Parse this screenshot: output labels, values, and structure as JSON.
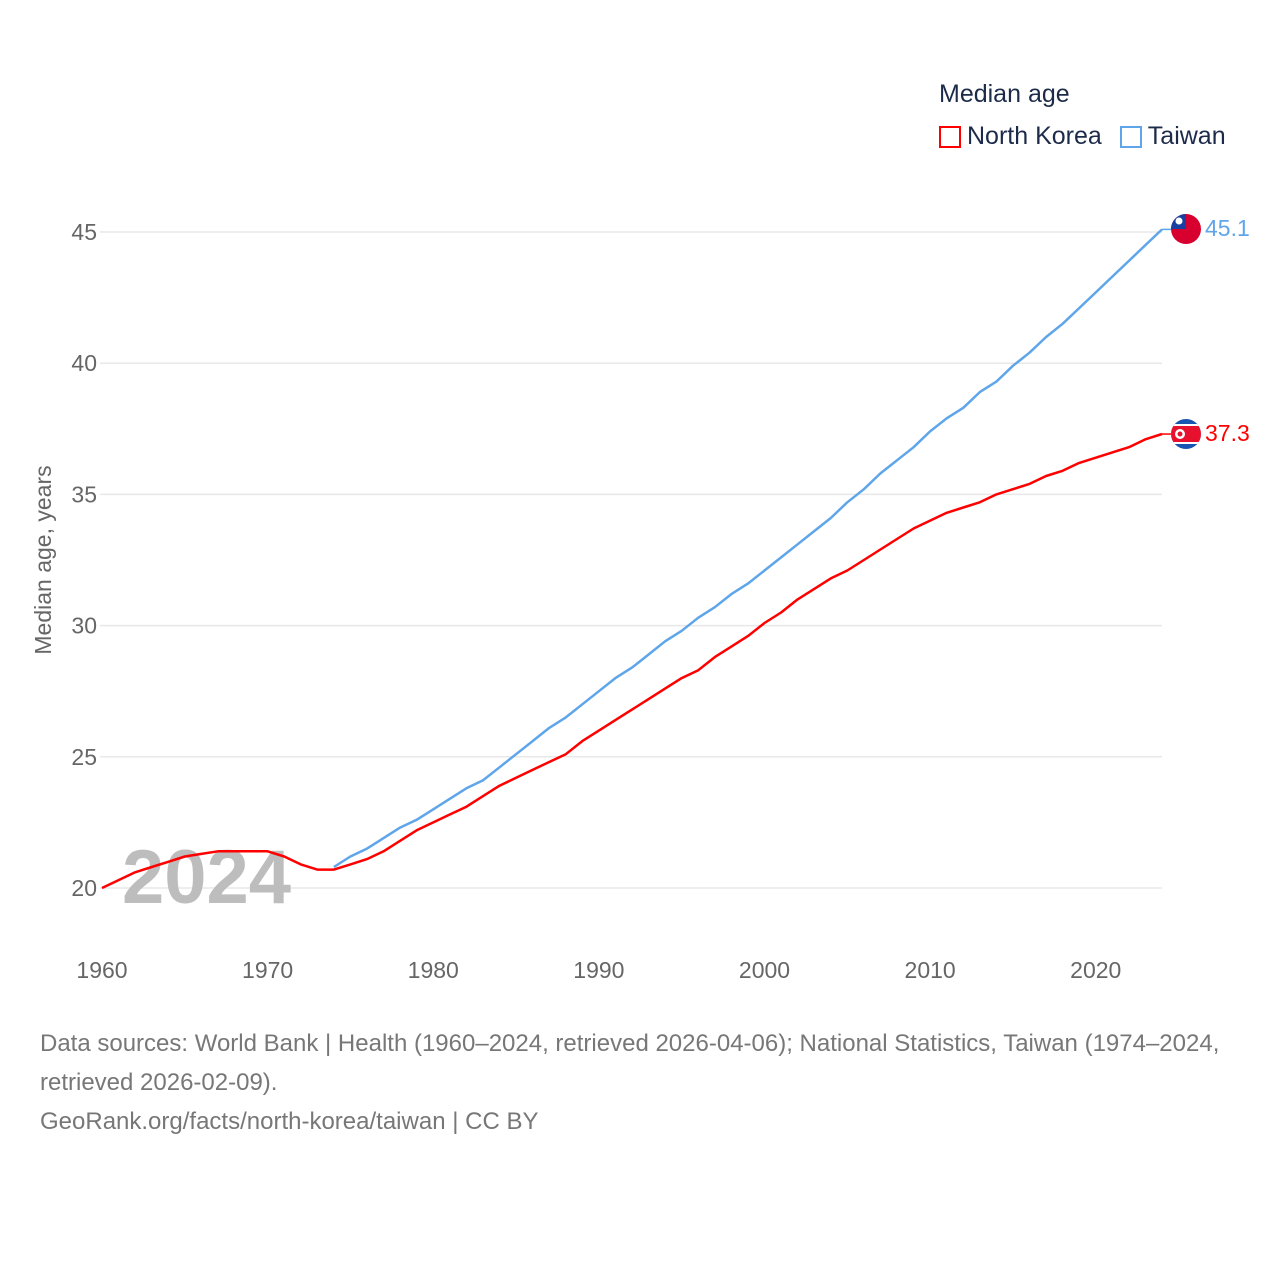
{
  "chart_data": {
    "type": "line",
    "ylabel": "Median age, years",
    "xlabel": "",
    "ylim": [
      20,
      45
    ],
    "xlim": [
      1960,
      2024
    ],
    "yticks": [
      "20",
      "25",
      "30",
      "35",
      "40",
      "45"
    ],
    "xticks": [
      "1960",
      "1970",
      "1980",
      "1990",
      "2000",
      "2010",
      "2020"
    ],
    "grid": true,
    "watermark_year": "2024",
    "legend": {
      "title": "Median age",
      "placement": "top-right"
    },
    "series": [
      {
        "name": "North Korea",
        "color": "#ff0000",
        "start_year": 1960,
        "end_label": "37.3",
        "values": [
          20.0,
          20.3,
          20.6,
          20.8,
          21.0,
          21.2,
          21.3,
          21.4,
          21.4,
          21.4,
          21.4,
          21.2,
          20.9,
          20.7,
          20.7,
          20.9,
          21.1,
          21.4,
          21.8,
          22.2,
          22.5,
          22.8,
          23.1,
          23.5,
          23.9,
          24.2,
          24.5,
          24.8,
          25.1,
          25.6,
          26.0,
          26.4,
          26.8,
          27.2,
          27.6,
          28.0,
          28.3,
          28.8,
          29.2,
          29.6,
          30.1,
          30.5,
          31.0,
          31.4,
          31.8,
          32.1,
          32.5,
          32.9,
          33.3,
          33.7,
          34.0,
          34.3,
          34.5,
          34.7,
          35.0,
          35.2,
          35.4,
          35.7,
          35.9,
          36.2,
          36.4,
          36.6,
          36.8,
          37.1,
          37.3
        ]
      },
      {
        "name": "Taiwan",
        "color": "#5ea5ea",
        "start_year": 1974,
        "end_label": "45.1",
        "values": [
          20.8,
          21.2,
          21.5,
          21.9,
          22.3,
          22.6,
          23.0,
          23.4,
          23.8,
          24.1,
          24.6,
          25.1,
          25.6,
          26.1,
          26.5,
          27.0,
          27.5,
          28.0,
          28.4,
          28.9,
          29.4,
          29.8,
          30.3,
          30.7,
          31.2,
          31.6,
          32.1,
          32.6,
          33.1,
          33.6,
          34.1,
          34.7,
          35.2,
          35.8,
          36.3,
          36.8,
          37.4,
          37.9,
          38.3,
          38.9,
          39.3,
          39.9,
          40.4,
          41.0,
          41.5,
          42.1,
          42.7,
          43.3,
          43.9,
          44.5,
          45.1
        ]
      }
    ]
  },
  "footer": {
    "sources": "Data sources: World Bank | Health (1960–2024, retrieved 2026-04-06); National Statistics, Taiwan (1974–2024, retrieved 2026-02-09).",
    "credit": "GeoRank.org/facts/north-korea/taiwan | CC BY"
  }
}
